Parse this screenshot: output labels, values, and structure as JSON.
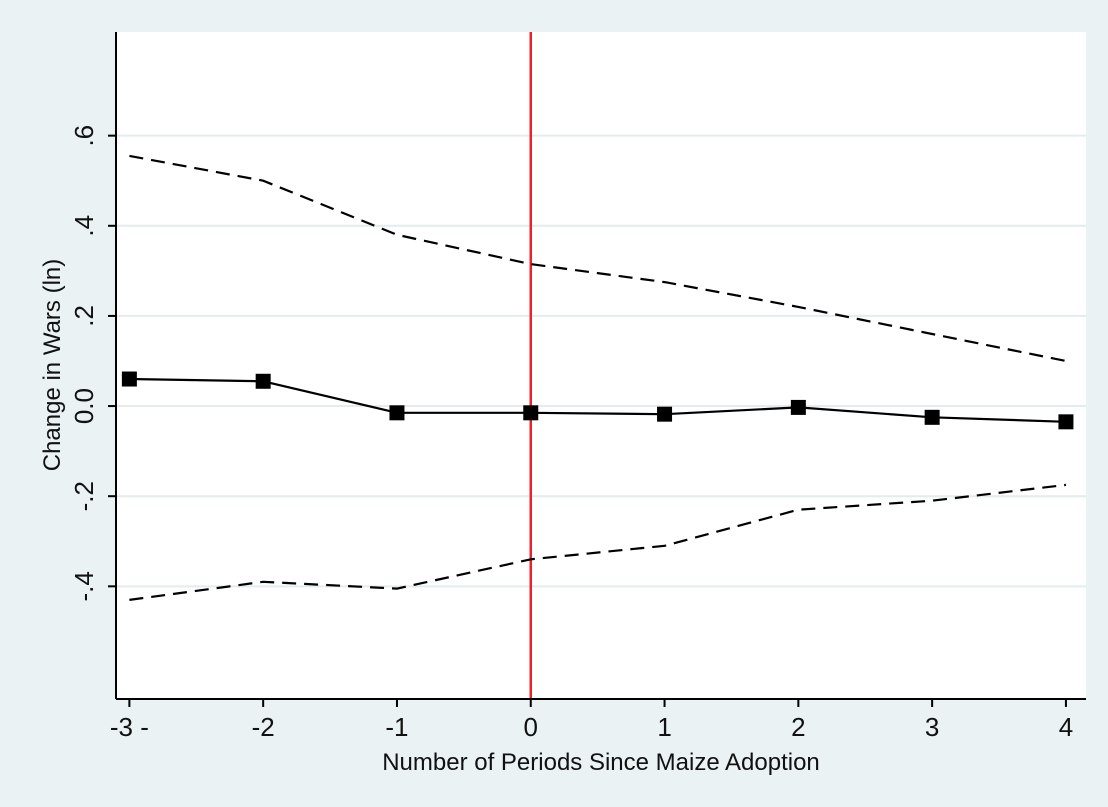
{
  "chart_data": {
    "type": "line",
    "title": "",
    "xlabel": "Number of Periods Since Maize Adoption",
    "ylabel": "Change in Wars (ln)",
    "x": [
      -3,
      -2,
      -1,
      0,
      1,
      2,
      3,
      4
    ],
    "x_tick_labels": [
      "-3 -",
      "-2",
      "-1",
      "0",
      "1",
      "2",
      "3",
      "4"
    ],
    "y_ticks": [
      -0.4,
      -0.2,
      0,
      0.2,
      0.4,
      0.6
    ],
    "y_tick_labels": [
      "-.4",
      "-.2",
      "0.0",
      ".2",
      ".4",
      ".6"
    ],
    "xlim": [
      -3.1,
      4.15
    ],
    "ylim": [
      -0.65,
      0.83
    ],
    "grid": true,
    "legend": "none",
    "reference_line": {
      "x": 0,
      "color": "#e8242a"
    },
    "series": [
      {
        "style": "solid",
        "marker": "square",
        "color": "#000000",
        "values": [
          0.06,
          0.055,
          -0.015,
          -0.015,
          -0.018,
          -0.003,
          -0.025,
          -0.035
        ]
      },
      {
        "style": "dashed",
        "color": "#000000",
        "values": [
          0.555,
          0.5,
          0.38,
          0.315,
          0.275,
          0.22,
          0.16,
          0.1
        ]
      },
      {
        "style": "dashed",
        "color": "#000000",
        "values": [
          -0.43,
          -0.39,
          -0.405,
          -0.34,
          -0.31,
          -0.23,
          -0.21,
          -0.175
        ]
      }
    ]
  }
}
